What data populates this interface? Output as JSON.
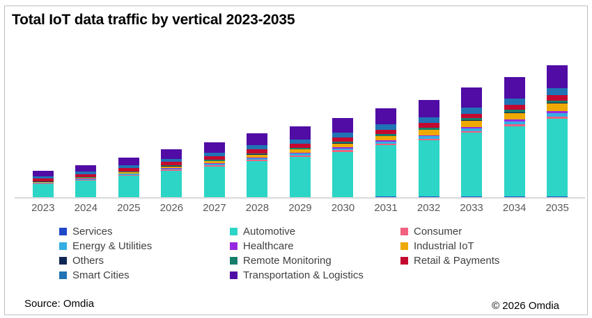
{
  "title": "Total IoT data traffic by vertical 2023-2035",
  "source_note": "Source: Omdia",
  "copyright": "© 2026 Omdia",
  "colors": {
    "title_text": "#000000",
    "axis_line": "#D9D9D9",
    "tick_label": "#595959",
    "legend_text": "#404040",
    "frame_border": "#BFBFBF",
    "background": "#FFFFFF"
  },
  "chart_data": {
    "type": "bar",
    "stacked": true,
    "title": "Total IoT data traffic by vertical 2023-2035",
    "xlabel": "",
    "ylabel": "",
    "units": "relative traffic index (no y-axis labels shown in chart)",
    "ylim": [
      0,
      195
    ],
    "grid": false,
    "legend_position": "bottom",
    "categories": [
      "2023",
      "2024",
      "2025",
      "2026",
      "2027",
      "2028",
      "2029",
      "2030",
      "2031",
      "2032",
      "2033",
      "2034",
      "2035"
    ],
    "series": [
      {
        "name": "Services",
        "color": "#1F49C7",
        "values": [
          0.3,
          0.3,
          0.3,
          0.4,
          0.4,
          0.4,
          0.5,
          0.5,
          0.6,
          0.6,
          0.7,
          0.8,
          0.9
        ]
      },
      {
        "name": "Automotive",
        "color": "#2CD5C6",
        "values": [
          19,
          24,
          31,
          38,
          44,
          52,
          58,
          65,
          74,
          81,
          92,
          101,
          112
        ]
      },
      {
        "name": "Consumer",
        "color": "#F2617F",
        "values": [
          0.8,
          0.9,
          1.1,
          1.3,
          1.5,
          1.7,
          1.9,
          2.1,
          2.3,
          2.5,
          2.8,
          3.1,
          3.4
        ]
      },
      {
        "name": "Energy & Utilities",
        "color": "#33AEE3",
        "values": [
          1.0,
          1.2,
          1.4,
          1.7,
          2.0,
          2.3,
          2.6,
          2.9,
          3.2,
          3.6,
          4.0,
          4.5,
          5.0
        ]
      },
      {
        "name": "Healthcare",
        "color": "#9629E0",
        "values": [
          0.4,
          0.5,
          0.6,
          0.8,
          0.9,
          1.1,
          1.2,
          1.4,
          1.5,
          1.7,
          1.9,
          2.2,
          2.5
        ]
      },
      {
        "name": "Industrial IoT",
        "color": "#EEA904",
        "values": [
          0.8,
          1.1,
          1.6,
          2.2,
          2.9,
          3.7,
          4.5,
          5.3,
          6.3,
          7.3,
          8.6,
          9.8,
          11.0
        ]
      },
      {
        "name": "Others",
        "color": "#102653",
        "values": [
          0.3,
          0.3,
          0.3,
          0.4,
          0.4,
          0.4,
          0.5,
          0.5,
          0.6,
          0.7,
          0.7,
          0.8,
          0.9
        ]
      },
      {
        "name": "Remote Monitoring",
        "color": "#177E6B",
        "values": [
          0.8,
          0.9,
          1.1,
          1.3,
          1.5,
          1.8,
          2.0,
          2.2,
          2.5,
          2.7,
          3.0,
          3.4,
          3.8
        ]
      },
      {
        "name": "Retail & Payments",
        "color": "#C40930",
        "values": [
          3.3,
          3.7,
          4.2,
          4.6,
          5.0,
          5.4,
          5.7,
          6.0,
          6.3,
          6.5,
          6.8,
          7.0,
          7.2
        ]
      },
      {
        "name": "Smart Cities",
        "color": "#2074B5",
        "values": [
          3.3,
          3.7,
          4.3,
          4.8,
          5.3,
          5.9,
          6.4,
          6.9,
          7.5,
          8.0,
          8.7,
          9.4,
          10.2
        ]
      },
      {
        "name": "Transportation & Logistics",
        "color": "#500CA5",
        "values": [
          8.0,
          9.5,
          11.5,
          13.5,
          15.0,
          17.0,
          19.0,
          21.0,
          23.5,
          25.5,
          28.5,
          31.0,
          33.0
        ]
      }
    ]
  }
}
